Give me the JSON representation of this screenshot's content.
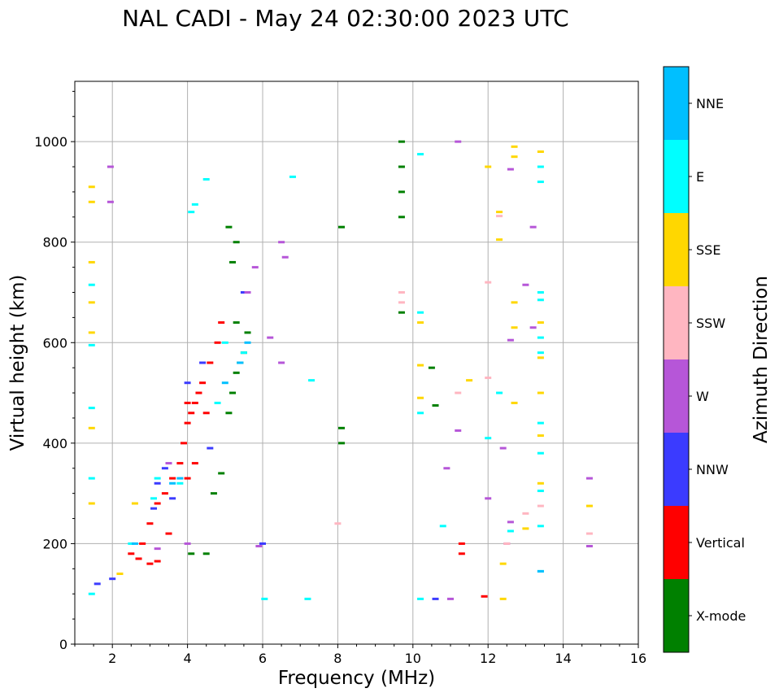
{
  "title": "NAL CADI - May 24 02:30:00 2023 UTC",
  "chart_data": {
    "type": "scatter",
    "title": "NAL CADI - May 24 02:30:00 2023 UTC",
    "xlabel": "Frequency (MHz)",
    "ylabel": "Virtual height (km)",
    "xlim": [
      1,
      16
    ],
    "ylim": [
      0,
      1120
    ],
    "xticks": [
      2,
      4,
      6,
      8,
      10,
      12,
      14,
      16
    ],
    "yticks": [
      0,
      200,
      400,
      600,
      800,
      1000
    ],
    "grid": true,
    "colorbar": {
      "label": "Azimuth Direction",
      "categories": [
        {
          "name": "X-mode",
          "color": "#008000"
        },
        {
          "name": "Vertical",
          "color": "#ff0000"
        },
        {
          "name": "NNW",
          "color": "#3b3bff"
        },
        {
          "name": "W",
          "color": "#b656d8"
        },
        {
          "name": "SSW",
          "color": "#ffb6c1"
        },
        {
          "name": "SSE",
          "color": "#ffd700"
        },
        {
          "name": "E",
          "color": "#00ffff"
        },
        {
          "name": "NNE",
          "color": "#00bfff"
        }
      ]
    },
    "series": [
      {
        "name": "X-mode",
        "points": [
          [
            4.5,
            180
          ],
          [
            4.9,
            340
          ],
          [
            5.1,
            460
          ],
          [
            5.2,
            500
          ],
          [
            5.3,
            540
          ],
          [
            5.4,
            560
          ],
          [
            5.5,
            580
          ],
          [
            5.6,
            620
          ],
          [
            5.2,
            760
          ],
          [
            5.3,
            800
          ],
          [
            5.1,
            830
          ],
          [
            9.7,
            850
          ],
          [
            9.7,
            900
          ],
          [
            9.7,
            950
          ],
          [
            9.7,
            1000
          ],
          [
            9.7,
            660
          ],
          [
            8.1,
            400
          ],
          [
            8.1,
            430
          ],
          [
            8.1,
            830
          ],
          [
            10.5,
            550
          ],
          [
            10.6,
            475
          ],
          [
            4.7,
            300
          ],
          [
            4.1,
            180
          ],
          [
            5.3,
            640
          ]
        ]
      },
      {
        "name": "Vertical",
        "points": [
          [
            2.5,
            180
          ],
          [
            2.7,
            170
          ],
          [
            3.0,
            160
          ],
          [
            3.2,
            165
          ],
          [
            2.8,
            200
          ],
          [
            3.0,
            240
          ],
          [
            3.2,
            280
          ],
          [
            3.4,
            300
          ],
          [
            3.6,
            330
          ],
          [
            3.8,
            360
          ],
          [
            3.9,
            400
          ],
          [
            4.0,
            440
          ],
          [
            4.1,
            460
          ],
          [
            4.2,
            480
          ],
          [
            4.3,
            500
          ],
          [
            4.4,
            520
          ],
          [
            4.6,
            560
          ],
          [
            4.8,
            600
          ],
          [
            4.9,
            640
          ],
          [
            3.5,
            220
          ],
          [
            4.0,
            480
          ],
          [
            4.5,
            460
          ],
          [
            11.3,
            180
          ],
          [
            11.3,
            200
          ],
          [
            11.9,
            95
          ],
          [
            4.2,
            360
          ],
          [
            4.0,
            330
          ]
        ]
      },
      {
        "name": "NNW",
        "points": [
          [
            1.6,
            120
          ],
          [
            2.0,
            130
          ],
          [
            3.2,
            320
          ],
          [
            3.4,
            350
          ],
          [
            4.0,
            520
          ],
          [
            4.6,
            390
          ],
          [
            6.0,
            200
          ],
          [
            10.6,
            90
          ],
          [
            3.1,
            270
          ],
          [
            3.6,
            290
          ],
          [
            5.5,
            700
          ],
          [
            4.4,
            560
          ]
        ]
      },
      {
        "name": "W",
        "points": [
          [
            1.95,
            950
          ],
          [
            1.95,
            880
          ],
          [
            6.5,
            800
          ],
          [
            6.6,
            770
          ],
          [
            5.8,
            750
          ],
          [
            5.6,
            700
          ],
          [
            6.2,
            610
          ],
          [
            6.5,
            560
          ],
          [
            5.9,
            195
          ],
          [
            11.2,
            1000
          ],
          [
            13.2,
            830
          ],
          [
            12.6,
            945
          ],
          [
            13.0,
            715
          ],
          [
            13.2,
            630
          ],
          [
            12.4,
            390
          ],
          [
            12.6,
            243
          ],
          [
            14.7,
            330
          ],
          [
            14.7,
            195
          ],
          [
            12.6,
            605
          ],
          [
            11.2,
            425
          ],
          [
            10.9,
            350
          ],
          [
            3.2,
            190
          ],
          [
            3.5,
            360
          ],
          [
            4.0,
            200
          ],
          [
            11.0,
            90
          ],
          [
            12.5,
            200
          ],
          [
            12.0,
            290
          ]
        ]
      },
      {
        "name": "SSW",
        "points": [
          [
            9.7,
            700
          ],
          [
            9.7,
            680
          ],
          [
            12.0,
            530
          ],
          [
            12.0,
            720
          ],
          [
            11.2,
            500
          ],
          [
            13.0,
            260
          ],
          [
            13.4,
            275
          ],
          [
            14.7,
            220
          ],
          [
            8.0,
            240
          ],
          [
            12.3,
            852
          ],
          [
            12.5,
            200
          ]
        ]
      },
      {
        "name": "SSE",
        "points": [
          [
            1.45,
            910
          ],
          [
            1.45,
            880
          ],
          [
            1.45,
            760
          ],
          [
            1.45,
            680
          ],
          [
            1.45,
            620
          ],
          [
            1.45,
            430
          ],
          [
            1.45,
            280
          ],
          [
            2.2,
            140
          ],
          [
            2.6,
            280
          ],
          [
            12.7,
            990
          ],
          [
            12.7,
            970
          ],
          [
            12.3,
            860
          ],
          [
            12.3,
            805
          ],
          [
            13.4,
            980
          ],
          [
            12.7,
            680
          ],
          [
            12.7,
            630
          ],
          [
            13.4,
            640
          ],
          [
            13.4,
            570
          ],
          [
            13.4,
            500
          ],
          [
            13.4,
            320
          ],
          [
            14.7,
            275
          ],
          [
            12.7,
            480
          ],
          [
            13.0,
            230
          ],
          [
            12.4,
            160
          ],
          [
            12.4,
            90
          ],
          [
            10.2,
            555
          ],
          [
            10.2,
            490
          ],
          [
            10.2,
            640
          ],
          [
            11.5,
            525
          ],
          [
            12.0,
            950
          ],
          [
            13.4,
            415
          ]
        ]
      },
      {
        "name": "E",
        "points": [
          [
            1.45,
            715
          ],
          [
            1.45,
            595
          ],
          [
            1.45,
            470
          ],
          [
            1.45,
            330
          ],
          [
            1.45,
            100
          ],
          [
            2.5,
            200
          ],
          [
            3.1,
            290
          ],
          [
            4.2,
            875
          ],
          [
            4.5,
            925
          ],
          [
            4.1,
            860
          ],
          [
            6.8,
            930
          ],
          [
            13.4,
            950
          ],
          [
            13.4,
            920
          ],
          [
            13.4,
            700
          ],
          [
            13.4,
            685
          ],
          [
            13.4,
            610
          ],
          [
            13.4,
            580
          ],
          [
            13.4,
            440
          ],
          [
            13.4,
            380
          ],
          [
            13.4,
            305
          ],
          [
            13.4,
            235
          ],
          [
            13.4,
            145
          ],
          [
            12.6,
            225
          ],
          [
            12.0,
            410
          ],
          [
            12.3,
            500
          ],
          [
            10.2,
            460
          ],
          [
            10.2,
            660
          ],
          [
            10.8,
            235
          ],
          [
            10.2,
            90
          ],
          [
            7.3,
            525
          ],
          [
            6.05,
            90
          ],
          [
            7.2,
            90
          ],
          [
            10.2,
            975
          ],
          [
            5.0,
            600
          ],
          [
            5.5,
            580
          ],
          [
            4.8,
            480
          ],
          [
            3.2,
            330
          ],
          [
            3.8,
            320
          ]
        ]
      },
      {
        "name": "NNE",
        "points": [
          [
            3.6,
            320
          ],
          [
            3.8,
            330
          ],
          [
            5.0,
            520
          ],
          [
            5.4,
            560
          ],
          [
            5.6,
            600
          ],
          [
            13.4,
            145
          ],
          [
            2.6,
            200
          ]
        ]
      }
    ]
  }
}
